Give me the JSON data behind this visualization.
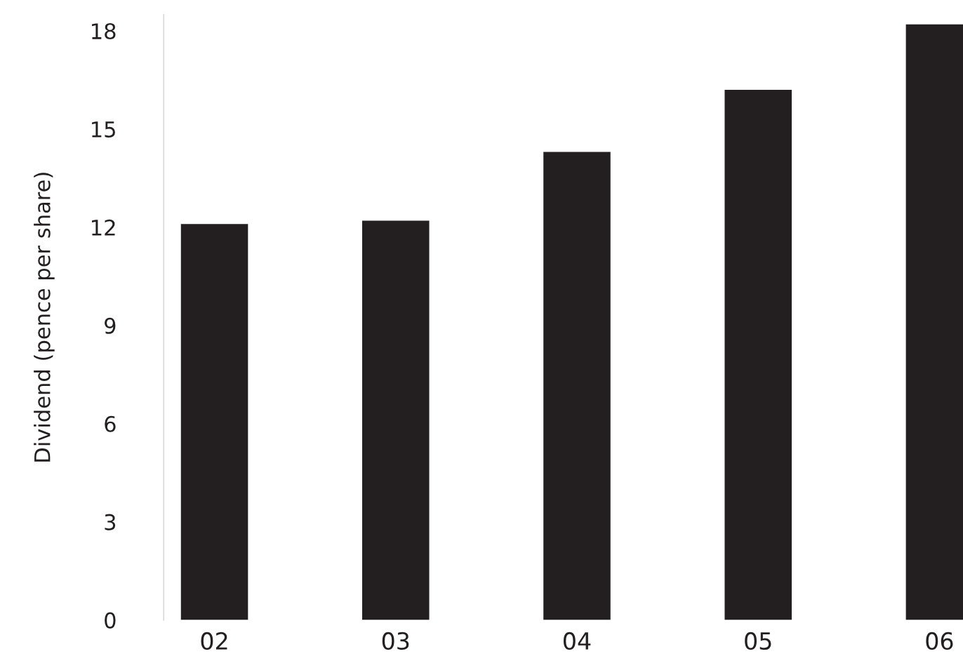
{
  "chart_data": {
    "type": "bar",
    "ylabel": "Dividend (pence per share)",
    "categories": [
      "02",
      "03",
      "04",
      "05",
      "06"
    ],
    "values": [
      12.1,
      12.2,
      14.3,
      16.2,
      18.2
    ],
    "color": "#231f20",
    "ylim": [
      0,
      18.5
    ],
    "yticks": [
      0,
      3,
      6,
      9,
      12,
      15,
      18
    ],
    "grid": false,
    "legend": false
  }
}
